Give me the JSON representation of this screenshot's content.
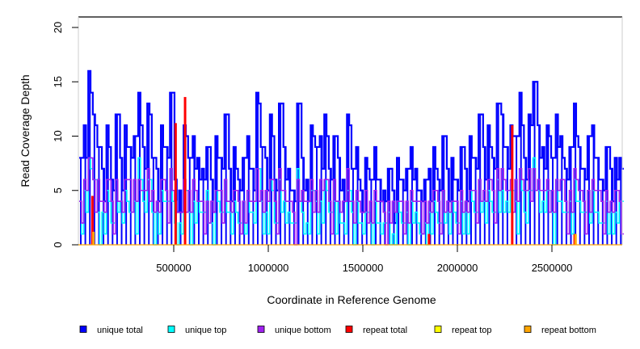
{
  "chart_data": {
    "type": "line",
    "title": "",
    "xlabel": "Coordinate in Reference Genome",
    "ylabel": "Read Coverage Depth",
    "xlim": [
      0,
      2880000
    ],
    "ylim": [
      0,
      20
    ],
    "xticks": [
      500000,
      1000000,
      1500000,
      2000000,
      2500000
    ],
    "xtick_labels": [
      "500000",
      "1000000",
      "1500000",
      "2000000",
      "2500000"
    ],
    "yticks": [
      0,
      5,
      10,
      15,
      20
    ],
    "ytick_labels": [
      "0",
      "5",
      "10",
      "15",
      "20"
    ],
    "bin_width": 24000,
    "legend_placement": "bottom",
    "series": [
      {
        "name": "unique total",
        "color": "#0000ff",
        "values": [
          8,
          11,
          16,
          12,
          9,
          7,
          11,
          6,
          12,
          8,
          11,
          9,
          10,
          14,
          9,
          13,
          8,
          7,
          11,
          9,
          14,
          6,
          5,
          11,
          8,
          10,
          8,
          7,
          9,
          6,
          10,
          8,
          12,
          7,
          9,
          6,
          8,
          10,
          7,
          14,
          9,
          8,
          12,
          6,
          13,
          9,
          7,
          5,
          13,
          8,
          6,
          11,
          9,
          10,
          12,
          7,
          10,
          8,
          6,
          12,
          7,
          9,
          5,
          8,
          6,
          9,
          6,
          5,
          7,
          5,
          8,
          6,
          7,
          9,
          7,
          5,
          6,
          7,
          9,
          6,
          10,
          7,
          8,
          6,
          9,
          7,
          10,
          8,
          12,
          9,
          11,
          8,
          13,
          12,
          9,
          11,
          10,
          14,
          8,
          12,
          15,
          11,
          9,
          11,
          8,
          12,
          10,
          7,
          9,
          13,
          9,
          7,
          10,
          11,
          8,
          6,
          9,
          7,
          8,
          8
        ]
      },
      {
        "name": "unique top",
        "color": "#00ffff",
        "values": [
          4,
          5,
          8,
          6,
          3,
          3,
          5,
          2,
          6,
          4,
          5,
          3,
          4,
          8,
          4,
          6,
          3,
          3,
          5,
          4,
          7,
          2,
          2,
          5,
          3,
          4,
          4,
          3,
          5,
          2,
          5,
          3,
          6,
          3,
          4,
          2,
          4,
          5,
          3,
          7,
          4,
          3,
          6,
          2,
          6,
          4,
          3,
          2,
          7,
          3,
          2,
          5,
          4,
          4,
          6,
          3,
          4,
          4,
          2,
          5,
          3,
          4,
          2,
          3,
          2,
          4,
          2,
          2,
          3,
          1,
          4,
          2,
          3,
          4,
          3,
          1,
          2,
          3,
          4,
          2,
          5,
          3,
          4,
          2,
          4,
          3,
          5,
          3,
          6,
          4,
          5,
          3,
          6,
          5,
          4,
          5,
          4,
          7,
          3,
          5,
          8,
          5,
          4,
          5,
          3,
          6,
          4,
          3,
          4,
          6,
          4,
          3,
          5,
          5,
          3,
          2,
          4,
          3,
          3,
          4
        ]
      },
      {
        "name": "unique bottom",
        "color": "#a020f0",
        "values": [
          4,
          6,
          8,
          6,
          6,
          4,
          6,
          4,
          6,
          4,
          6,
          6,
          6,
          6,
          5,
          7,
          5,
          4,
          6,
          5,
          7,
          4,
          3,
          6,
          5,
          6,
          4,
          4,
          4,
          4,
          5,
          5,
          6,
          4,
          5,
          4,
          4,
          5,
          4,
          7,
          5,
          5,
          6,
          4,
          7,
          5,
          4,
          3,
          6,
          5,
          4,
          6,
          5,
          6,
          6,
          4,
          6,
          4,
          4,
          7,
          4,
          5,
          3,
          5,
          4,
          5,
          4,
          3,
          4,
          4,
          4,
          4,
          4,
          5,
          4,
          4,
          4,
          4,
          5,
          4,
          5,
          4,
          4,
          4,
          5,
          4,
          5,
          5,
          6,
          5,
          6,
          5,
          7,
          7,
          5,
          6,
          6,
          7,
          5,
          7,
          7,
          6,
          5,
          6,
          5,
          6,
          6,
          4,
          5,
          7,
          5,
          4,
          5,
          6,
          5,
          4,
          5,
          4,
          5,
          4
        ]
      },
      {
        "name": "repeat total",
        "color": "#ff0000",
        "points": [
          [
            70000,
            4.5
          ],
          [
            510000,
            11.2
          ],
          [
            560000,
            13.6
          ],
          [
            1850000,
            1
          ],
          [
            2290000,
            11
          ],
          [
            2620000,
            1
          ]
        ]
      },
      {
        "name": "repeat top",
        "color": "#ffff00",
        "points": []
      },
      {
        "name": "repeat bottom",
        "color": "#ffa500",
        "points": [
          [
            75000,
            1.2
          ],
          [
            2625000,
            1
          ]
        ]
      }
    ]
  }
}
